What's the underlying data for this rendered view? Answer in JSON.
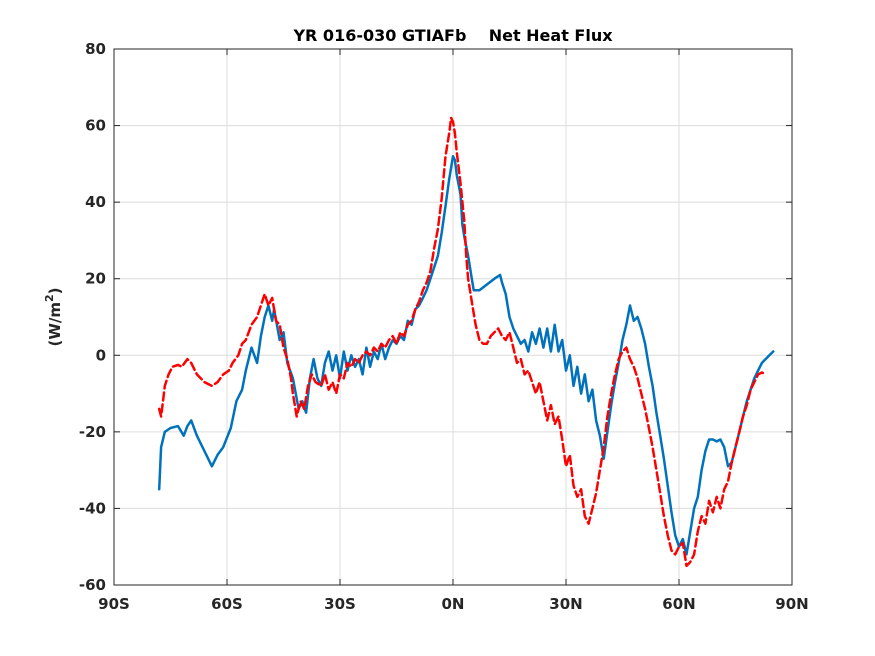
{
  "chart_data": {
    "type": "line",
    "title": "YR 016-030 GTIAFb    Net Heat Flux",
    "ylabel": "(W/m²)",
    "xlabel": "",
    "xlim": [
      -90,
      90
    ],
    "ylim": [
      -60,
      80
    ],
    "x_ticks": [
      -90,
      -60,
      -30,
      0,
      30,
      60,
      90
    ],
    "x_tick_labels": [
      "90S",
      "60S",
      "30S",
      "0N",
      "30N",
      "60N",
      "90N"
    ],
    "y_ticks": [
      -60,
      -40,
      -20,
      0,
      20,
      40,
      60,
      80
    ],
    "y_tick_labels": [
      "-60",
      "-40",
      "-20",
      "0",
      "20",
      "40",
      "60",
      "80"
    ],
    "grid": true,
    "series": [
      {
        "color": "#0072bd",
        "style": "solid",
        "points": [
          [
            -78,
            -35
          ],
          [
            -77.5,
            -24
          ],
          [
            -76.5,
            -20
          ],
          [
            -75,
            -19
          ],
          [
            -73,
            -18.5
          ],
          [
            -71.5,
            -21
          ],
          [
            -70.5,
            -18.5
          ],
          [
            -69.5,
            -17
          ],
          [
            -68,
            -21
          ],
          [
            -66,
            -25
          ],
          [
            -64,
            -29
          ],
          [
            -62.5,
            -26
          ],
          [
            -61,
            -24
          ],
          [
            -59,
            -19
          ],
          [
            -57.5,
            -12
          ],
          [
            -56,
            -9
          ],
          [
            -55,
            -4
          ],
          [
            -53.5,
            2
          ],
          [
            -52,
            -2
          ],
          [
            -51,
            5
          ],
          [
            -50,
            10
          ],
          [
            -49,
            13
          ],
          [
            -48,
            9
          ],
          [
            -47.5,
            12
          ],
          [
            -46,
            4
          ],
          [
            -45,
            6
          ],
          [
            -44,
            -2
          ],
          [
            -42.5,
            -6
          ],
          [
            -41,
            -14
          ],
          [
            -40,
            -12
          ],
          [
            -39,
            -15
          ],
          [
            -38,
            -6
          ],
          [
            -37,
            -1
          ],
          [
            -36,
            -6
          ],
          [
            -35,
            -8
          ],
          [
            -34,
            -2
          ],
          [
            -33,
            1
          ],
          [
            -32,
            -4
          ],
          [
            -31,
            0
          ],
          [
            -30,
            -6
          ],
          [
            -29,
            1
          ],
          [
            -28,
            -4
          ],
          [
            -27,
            0
          ],
          [
            -26,
            -3
          ],
          [
            -25,
            -1
          ],
          [
            -24,
            -5
          ],
          [
            -23,
            2
          ],
          [
            -22,
            -3
          ],
          [
            -21,
            1
          ],
          [
            -20,
            -1
          ],
          [
            -19,
            3
          ],
          [
            -18,
            -1
          ],
          [
            -17,
            2
          ],
          [
            -16,
            4
          ],
          [
            -15,
            3
          ],
          [
            -14,
            5
          ],
          [
            -13,
            4
          ],
          [
            -12,
            9
          ],
          [
            -11,
            8
          ],
          [
            -10,
            12
          ],
          [
            -9,
            13
          ],
          [
            -8,
            15
          ],
          [
            -7,
            17
          ],
          [
            -6,
            20
          ],
          [
            -5,
            23
          ],
          [
            -4,
            26
          ],
          [
            -3,
            32
          ],
          [
            -2,
            39
          ],
          [
            -1,
            46
          ],
          [
            0,
            52
          ],
          [
            0.5,
            51
          ],
          [
            1,
            47
          ],
          [
            2,
            42
          ],
          [
            2.5,
            34
          ],
          [
            3,
            31
          ],
          [
            4,
            26
          ],
          [
            5,
            20
          ],
          [
            5.5,
            17
          ],
          [
            7,
            17
          ],
          [
            9,
            18.5
          ],
          [
            11,
            20
          ],
          [
            12.5,
            21
          ],
          [
            13,
            19
          ],
          [
            14,
            16
          ],
          [
            15,
            10
          ],
          [
            16,
            7
          ],
          [
            17,
            5
          ],
          [
            18,
            3
          ],
          [
            19,
            4
          ],
          [
            20,
            1
          ],
          [
            21,
            6
          ],
          [
            22,
            3
          ],
          [
            23,
            7
          ],
          [
            24,
            2
          ],
          [
            25,
            7
          ],
          [
            26,
            1
          ],
          [
            27,
            8
          ],
          [
            28,
            1
          ],
          [
            29,
            4
          ],
          [
            30,
            -4
          ],
          [
            31,
            0
          ],
          [
            32,
            -8
          ],
          [
            33,
            -3
          ],
          [
            34,
            -10
          ],
          [
            35,
            -5
          ],
          [
            36,
            -12
          ],
          [
            37,
            -9
          ],
          [
            38,
            -17
          ],
          [
            39,
            -21
          ],
          [
            40,
            -27
          ],
          [
            41,
            -20
          ],
          [
            42,
            -13
          ],
          [
            43,
            -7
          ],
          [
            44,
            -2
          ],
          [
            45,
            4
          ],
          [
            46,
            8
          ],
          [
            47,
            13
          ],
          [
            48,
            9
          ],
          [
            49,
            10
          ],
          [
            50,
            7
          ],
          [
            51,
            3
          ],
          [
            52,
            -3
          ],
          [
            53,
            -8
          ],
          [
            54,
            -15
          ],
          [
            55,
            -21
          ],
          [
            56,
            -27
          ],
          [
            57,
            -34
          ],
          [
            58,
            -41
          ],
          [
            59,
            -47
          ],
          [
            60,
            -50
          ],
          [
            61,
            -48
          ],
          [
            62,
            -52
          ],
          [
            63,
            -46
          ],
          [
            64,
            -40
          ],
          [
            65,
            -37
          ],
          [
            66,
            -30
          ],
          [
            67,
            -25
          ],
          [
            68,
            -22
          ],
          [
            69,
            -22
          ],
          [
            70,
            -22.5
          ],
          [
            71,
            -22
          ],
          [
            72,
            -24
          ],
          [
            73,
            -29
          ],
          [
            74,
            -28
          ],
          [
            75,
            -24
          ],
          [
            76,
            -20
          ],
          [
            77,
            -16
          ],
          [
            78,
            -12
          ],
          [
            79,
            -9
          ],
          [
            80,
            -6
          ],
          [
            81,
            -4
          ],
          [
            82,
            -2
          ],
          [
            83,
            -1
          ],
          [
            84,
            0
          ],
          [
            85,
            1
          ]
        ]
      },
      {
        "color": "#ff0000",
        "style": "dashed",
        "points": [
          [
            -78,
            -14
          ],
          [
            -77.5,
            -16
          ],
          [
            -77,
            -12
          ],
          [
            -76.5,
            -8
          ],
          [
            -75.5,
            -5
          ],
          [
            -74.5,
            -3
          ],
          [
            -73,
            -2.5
          ],
          [
            -72,
            -3
          ],
          [
            -70.5,
            -1
          ],
          [
            -69.5,
            -2
          ],
          [
            -68,
            -5
          ],
          [
            -66,
            -7
          ],
          [
            -64,
            -8
          ],
          [
            -62.5,
            -7
          ],
          [
            -61,
            -5
          ],
          [
            -59.5,
            -4
          ],
          [
            -58.5,
            -2
          ],
          [
            -57,
            0
          ],
          [
            -56,
            3
          ],
          [
            -55,
            4
          ],
          [
            -53.5,
            8
          ],
          [
            -52,
            10
          ],
          [
            -51,
            13
          ],
          [
            -50,
            16
          ],
          [
            -49,
            13
          ],
          [
            -48,
            15
          ],
          [
            -47,
            9
          ],
          [
            -46,
            8
          ],
          [
            -45,
            2
          ],
          [
            -44,
            -1
          ],
          [
            -43,
            -6
          ],
          [
            -42.5,
            -10
          ],
          [
            -41.5,
            -16
          ],
          [
            -40.5,
            -12
          ],
          [
            -39.5,
            -14
          ],
          [
            -38.5,
            -8
          ],
          [
            -37.5,
            -5
          ],
          [
            -36.5,
            -7
          ],
          [
            -35,
            -8
          ],
          [
            -34,
            -5
          ],
          [
            -33,
            -9
          ],
          [
            -32,
            -7
          ],
          [
            -31,
            -10
          ],
          [
            -30,
            -5
          ],
          [
            -29,
            -6
          ],
          [
            -28,
            -2
          ],
          [
            -27,
            -3
          ],
          [
            -26,
            -1
          ],
          [
            -25,
            -2
          ],
          [
            -24,
            0
          ],
          [
            -23,
            1
          ],
          [
            -22,
            0
          ],
          [
            -21,
            2
          ],
          [
            -20,
            1
          ],
          [
            -19,
            3
          ],
          [
            -18,
            2
          ],
          [
            -17,
            4
          ],
          [
            -16,
            5
          ],
          [
            -15,
            3
          ],
          [
            -14,
            6
          ],
          [
            -13,
            5
          ],
          [
            -12,
            8
          ],
          [
            -11,
            9
          ],
          [
            -10,
            12
          ],
          [
            -9,
            14
          ],
          [
            -8,
            17
          ],
          [
            -7,
            19
          ],
          [
            -6,
            22
          ],
          [
            -5,
            28
          ],
          [
            -4,
            33
          ],
          [
            -3,
            41
          ],
          [
            -2,
            52
          ],
          [
            -1,
            58
          ],
          [
            -0.5,
            62
          ],
          [
            0,
            61
          ],
          [
            0.5,
            58
          ],
          [
            1,
            53
          ],
          [
            2,
            45
          ],
          [
            3,
            35
          ],
          [
            3.5,
            26
          ],
          [
            4,
            20
          ],
          [
            5,
            14
          ],
          [
            6,
            8
          ],
          [
            7,
            4
          ],
          [
            8,
            3
          ],
          [
            9,
            3
          ],
          [
            10,
            5
          ],
          [
            11,
            6
          ],
          [
            12,
            7
          ],
          [
            13,
            5
          ],
          [
            14,
            4
          ],
          [
            15,
            6
          ],
          [
            16,
            2
          ],
          [
            17,
            -2
          ],
          [
            18,
            -1
          ],
          [
            19,
            -5
          ],
          [
            20,
            -4
          ],
          [
            21,
            -7
          ],
          [
            22,
            -10
          ],
          [
            23,
            -7
          ],
          [
            24,
            -12
          ],
          [
            25,
            -17
          ],
          [
            26,
            -13
          ],
          [
            27,
            -18
          ],
          [
            28,
            -16
          ],
          [
            29,
            -22
          ],
          [
            30,
            -29
          ],
          [
            31,
            -26
          ],
          [
            32,
            -34
          ],
          [
            33,
            -37
          ],
          [
            34,
            -35
          ],
          [
            35,
            -42
          ],
          [
            36,
            -44
          ],
          [
            37,
            -40
          ],
          [
            38,
            -36
          ],
          [
            39,
            -30
          ],
          [
            40,
            -24
          ],
          [
            41,
            -16
          ],
          [
            42,
            -10
          ],
          [
            43,
            -5
          ],
          [
            44,
            -1
          ],
          [
            45,
            1
          ],
          [
            46,
            2
          ],
          [
            47,
            -1
          ],
          [
            48,
            -3
          ],
          [
            49,
            -6
          ],
          [
            50,
            -10
          ],
          [
            51,
            -14
          ],
          [
            52,
            -19
          ],
          [
            53,
            -24
          ],
          [
            54,
            -30
          ],
          [
            55,
            -36
          ],
          [
            56,
            -42
          ],
          [
            57,
            -47
          ],
          [
            58,
            -51
          ],
          [
            59,
            -52
          ],
          [
            60,
            -50
          ],
          [
            61,
            -49
          ],
          [
            62,
            -55
          ],
          [
            63,
            -54
          ],
          [
            64,
            -52
          ],
          [
            65,
            -46
          ],
          [
            66,
            -42
          ],
          [
            67,
            -44
          ],
          [
            68,
            -38
          ],
          [
            69,
            -41
          ],
          [
            70,
            -37
          ],
          [
            71,
            -40
          ],
          [
            72,
            -35
          ],
          [
            73,
            -33
          ],
          [
            74,
            -28
          ],
          [
            75,
            -24
          ],
          [
            76,
            -20
          ],
          [
            77,
            -16
          ],
          [
            78,
            -13
          ],
          [
            79,
            -9
          ],
          [
            80,
            -7
          ],
          [
            81,
            -5
          ],
          [
            82,
            -4.5
          ],
          [
            83,
            -5
          ]
        ]
      }
    ]
  }
}
